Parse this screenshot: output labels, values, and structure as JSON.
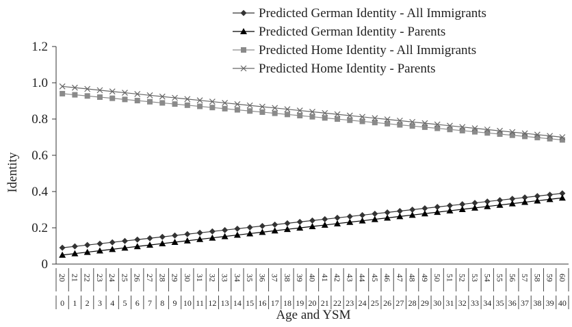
{
  "chart_data": {
    "type": "line",
    "xlabel": "Age and YSM",
    "ylabel": "Identity",
    "ylim": [
      0,
      1.2
    ],
    "yticks": [
      "0",
      "0.2",
      "0.4",
      "0.6",
      "0.8",
      "1.0",
      "1.2"
    ],
    "grid": false,
    "legend_position": "top",
    "x_age": [
      "20",
      "21",
      "22",
      "23",
      "24",
      "25",
      "26",
      "27",
      "28",
      "29",
      "30",
      "31",
      "32",
      "33",
      "34",
      "35",
      "36",
      "37",
      "38",
      "39",
      "40",
      "41",
      "42",
      "43",
      "44",
      "45",
      "46",
      "47",
      "48",
      "49",
      "50",
      "51",
      "52",
      "53",
      "54",
      "55",
      "56",
      "57",
      "58",
      "59",
      "60"
    ],
    "x_ysm": [
      "0",
      "1",
      "2",
      "3",
      "4",
      "5",
      "6",
      "7",
      "8",
      "9",
      "10",
      "11",
      "12",
      "13",
      "14",
      "15",
      "16",
      "17",
      "18",
      "19",
      "20",
      "21",
      "22",
      "23",
      "24",
      "25",
      "26",
      "27",
      "28",
      "29",
      "30",
      "31",
      "32",
      "33",
      "34",
      "35",
      "36",
      "37",
      "38",
      "39",
      "40"
    ],
    "series": [
      {
        "name": "Predicted German Identity - All Immigrants",
        "marker": "diamond",
        "color": "#333333",
        "start": 0.09,
        "end": 0.39
      },
      {
        "name": "Predicted German Identity - Parents",
        "marker": "triangle",
        "color": "#000000",
        "start": 0.05,
        "end": 0.365
      },
      {
        "name": "Predicted Home Identity - All Immigrants",
        "marker": "square",
        "color": "#8a8a8a",
        "start": 0.94,
        "end": 0.685
      },
      {
        "name": "Predicted Home Identity - Parents",
        "marker": "x",
        "color": "#666666",
        "start": 0.98,
        "end": 0.7
      }
    ]
  }
}
